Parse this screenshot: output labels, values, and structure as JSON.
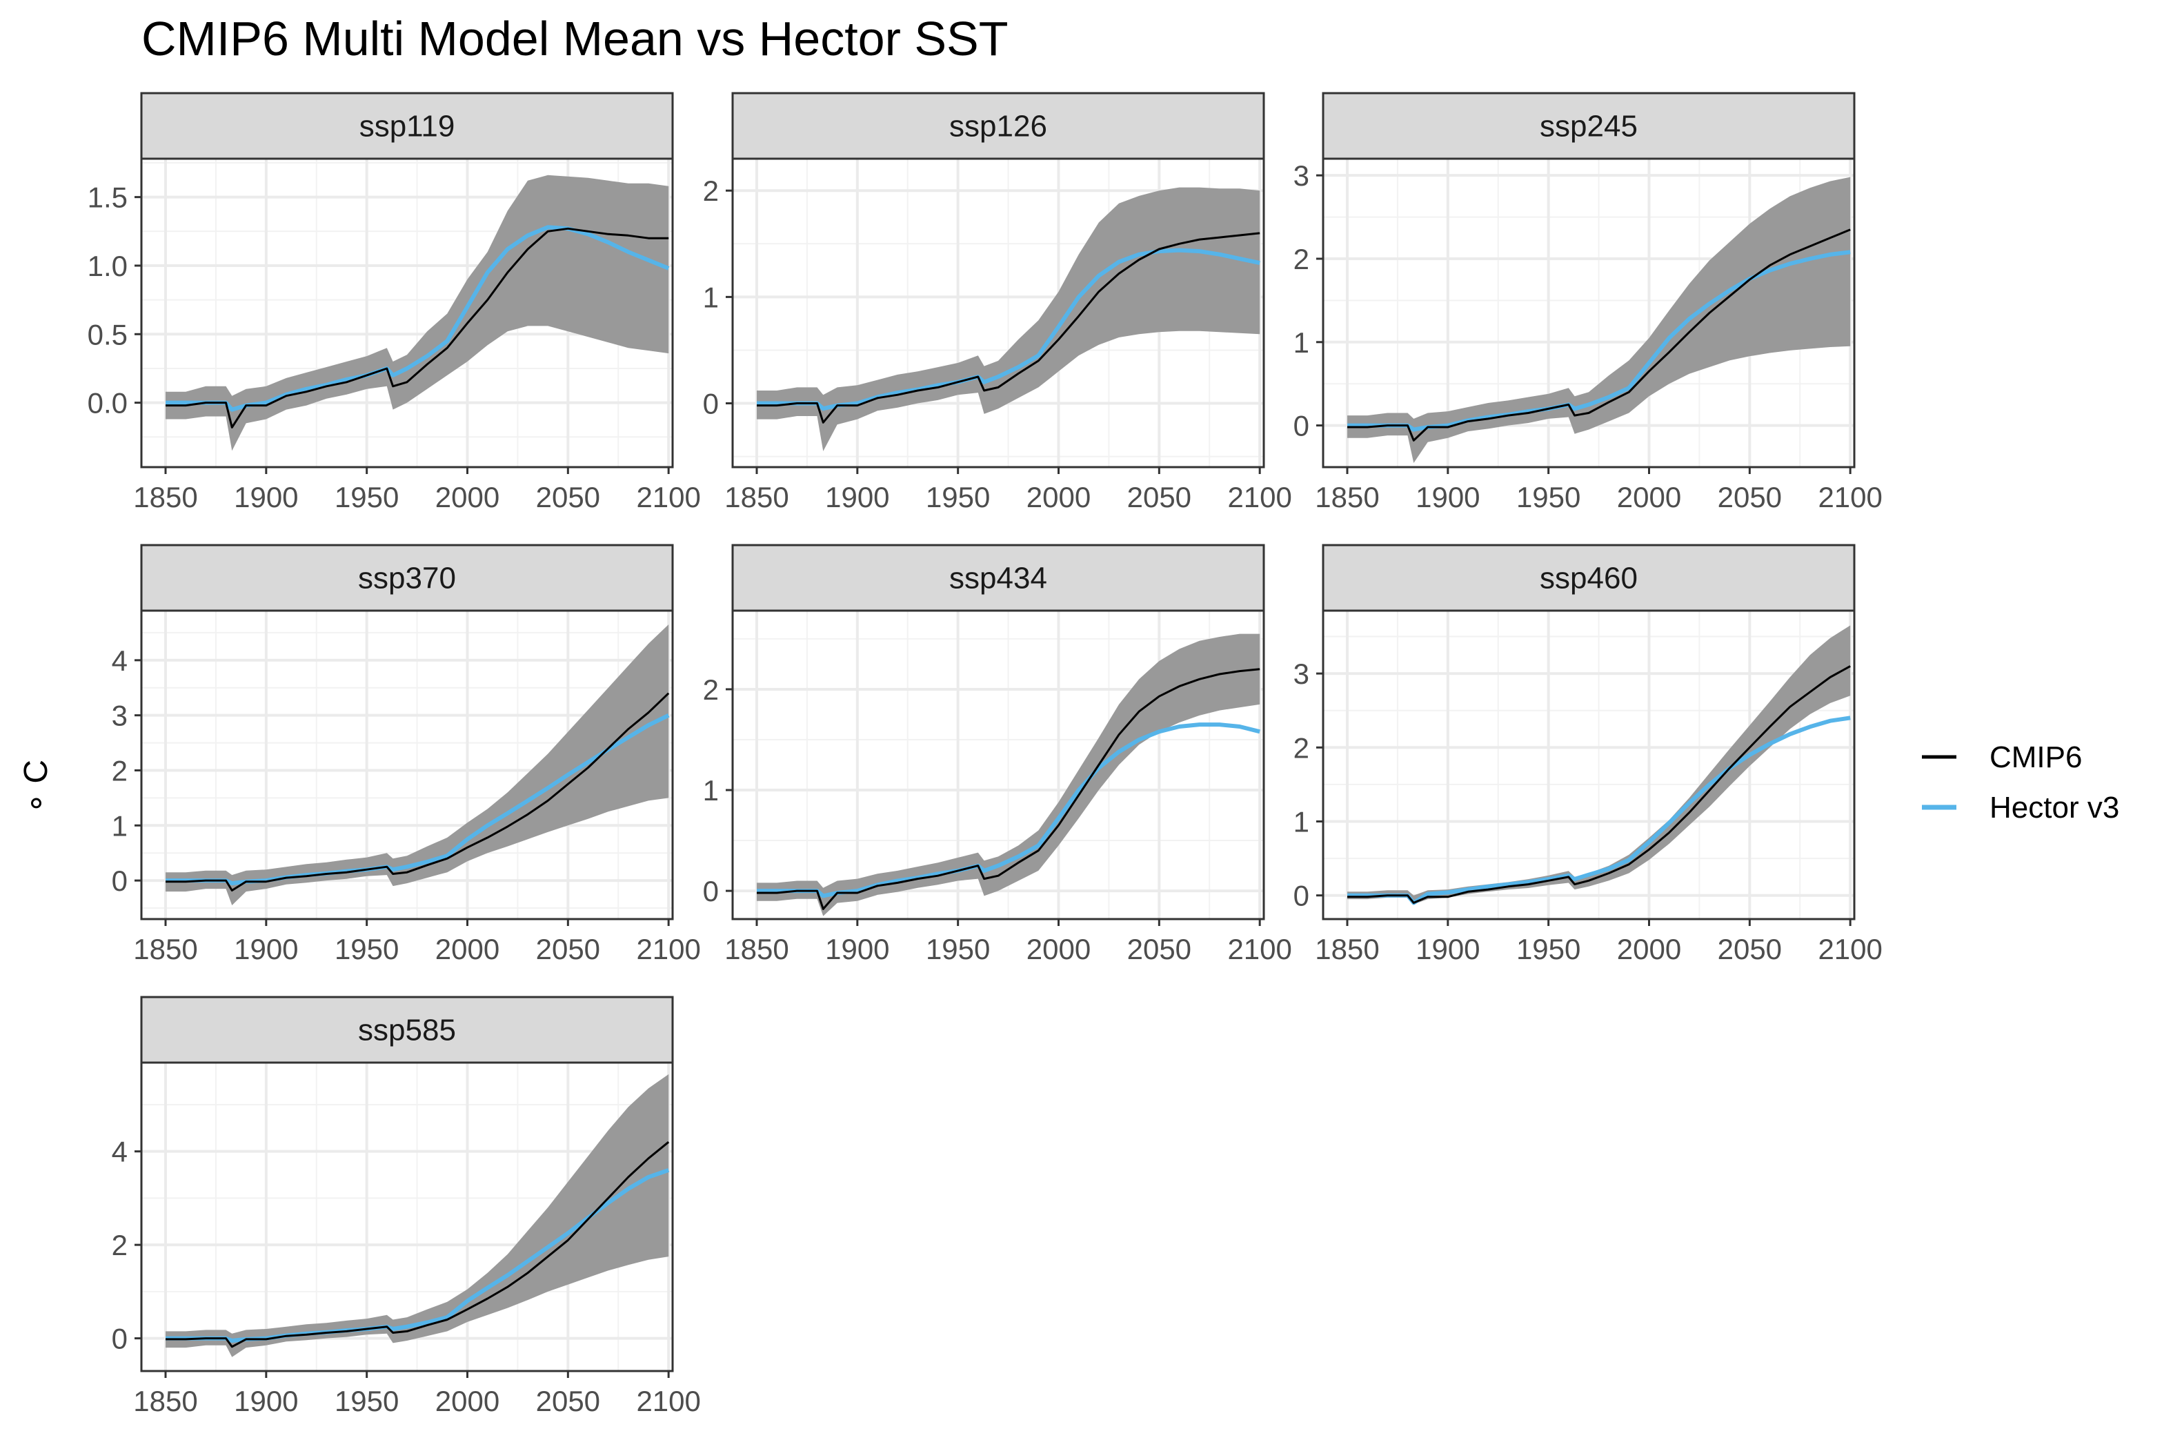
{
  "chart_data": {
    "type": "line",
    "title": "CMIP6 Multi Model Mean vs Hector SST",
    "xlabel": "",
    "ylabel": "∘ C",
    "grid": true,
    "legend_position": "right",
    "legend": [
      {
        "name": "CMIP6",
        "color": "#000000"
      },
      {
        "name": "Hector v3",
        "color": "#56B4E9"
      }
    ],
    "ribbon_color": "#999999",
    "x_ticks": [
      1850,
      1900,
      1950,
      2000,
      2050,
      2100
    ],
    "xlim": [
      1838,
      2102
    ],
    "panels": [
      {
        "name": "ssp119",
        "ylim": [
          -0.47,
          1.78
        ],
        "y_ticks": [
          0,
          0.5,
          1,
          1.5
        ],
        "y_tick_labels": [
          "0.0",
          "0.5",
          "1.0",
          "1.5"
        ],
        "x": [
          1850,
          1860,
          1870,
          1880,
          1883,
          1890,
          1900,
          1910,
          1920,
          1930,
          1940,
          1950,
          1960,
          1963,
          1970,
          1980,
          1990,
          2000,
          2010,
          2020,
          2030,
          2040,
          2050,
          2060,
          2070,
          2080,
          2090,
          2100
        ],
        "cmip6": [
          -0.02,
          -0.02,
          0.0,
          0.0,
          -0.18,
          -0.02,
          -0.02,
          0.05,
          0.08,
          0.12,
          0.15,
          0.2,
          0.25,
          0.12,
          0.15,
          0.28,
          0.4,
          0.58,
          0.75,
          0.95,
          1.12,
          1.25,
          1.27,
          1.25,
          1.23,
          1.22,
          1.2,
          1.2
        ],
        "hector": [
          0.0,
          0.0,
          0.0,
          0.0,
          -0.05,
          -0.02,
          0.0,
          0.06,
          0.1,
          0.13,
          0.17,
          0.2,
          0.25,
          0.2,
          0.25,
          0.34,
          0.45,
          0.7,
          0.95,
          1.12,
          1.22,
          1.28,
          1.27,
          1.23,
          1.17,
          1.1,
          1.04,
          0.98
        ],
        "lower": [
          -0.12,
          -0.12,
          -0.1,
          -0.1,
          -0.35,
          -0.15,
          -0.12,
          -0.05,
          -0.02,
          0.03,
          0.06,
          0.1,
          0.12,
          -0.05,
          0.0,
          0.1,
          0.2,
          0.3,
          0.42,
          0.52,
          0.56,
          0.56,
          0.52,
          0.48,
          0.44,
          0.4,
          0.38,
          0.36
        ],
        "upper": [
          0.08,
          0.08,
          0.12,
          0.12,
          0.05,
          0.1,
          0.12,
          0.18,
          0.22,
          0.26,
          0.3,
          0.34,
          0.4,
          0.3,
          0.35,
          0.52,
          0.65,
          0.9,
          1.1,
          1.4,
          1.62,
          1.66,
          1.65,
          1.64,
          1.62,
          1.6,
          1.6,
          1.58
        ]
      },
      {
        "name": "ssp126",
        "ylim": [
          -0.6,
          2.3
        ],
        "y_ticks": [
          0,
          1,
          2
        ],
        "y_tick_labels": [
          "0",
          "1",
          "2"
        ],
        "x": [
          1850,
          1860,
          1870,
          1880,
          1883,
          1890,
          1900,
          1910,
          1920,
          1930,
          1940,
          1950,
          1960,
          1963,
          1970,
          1980,
          1990,
          2000,
          2010,
          2020,
          2030,
          2040,
          2050,
          2060,
          2070,
          2080,
          2090,
          2100
        ],
        "cmip6": [
          -0.02,
          -0.02,
          0.0,
          0.0,
          -0.18,
          -0.02,
          -0.02,
          0.05,
          0.08,
          0.12,
          0.15,
          0.2,
          0.25,
          0.12,
          0.15,
          0.28,
          0.4,
          0.6,
          0.82,
          1.05,
          1.22,
          1.35,
          1.45,
          1.5,
          1.54,
          1.56,
          1.58,
          1.6
        ],
        "hector": [
          0.0,
          0.0,
          0.0,
          0.0,
          -0.05,
          -0.02,
          0.0,
          0.06,
          0.1,
          0.13,
          0.17,
          0.2,
          0.25,
          0.2,
          0.25,
          0.34,
          0.45,
          0.72,
          1.0,
          1.2,
          1.33,
          1.4,
          1.43,
          1.44,
          1.43,
          1.4,
          1.36,
          1.32
        ],
        "lower": [
          -0.15,
          -0.15,
          -0.12,
          -0.12,
          -0.45,
          -0.2,
          -0.15,
          -0.07,
          -0.04,
          0.0,
          0.03,
          0.08,
          0.1,
          -0.1,
          -0.05,
          0.05,
          0.15,
          0.3,
          0.45,
          0.55,
          0.62,
          0.65,
          0.67,
          0.68,
          0.68,
          0.67,
          0.66,
          0.65
        ],
        "upper": [
          0.12,
          0.12,
          0.15,
          0.15,
          0.08,
          0.15,
          0.17,
          0.22,
          0.27,
          0.3,
          0.34,
          0.38,
          0.45,
          0.35,
          0.4,
          0.6,
          0.78,
          1.05,
          1.4,
          1.7,
          1.88,
          1.95,
          2.0,
          2.03,
          2.03,
          2.02,
          2.02,
          2.0
        ]
      },
      {
        "name": "ssp245",
        "ylim": [
          -0.5,
          3.2
        ],
        "y_ticks": [
          0,
          1,
          2,
          3
        ],
        "y_tick_labels": [
          "0",
          "1",
          "2",
          "3"
        ],
        "x": [
          1850,
          1860,
          1870,
          1880,
          1883,
          1890,
          1900,
          1910,
          1920,
          1930,
          1940,
          1950,
          1960,
          1963,
          1970,
          1980,
          1990,
          2000,
          2010,
          2020,
          2030,
          2040,
          2050,
          2060,
          2070,
          2080,
          2090,
          2100
        ],
        "cmip6": [
          -0.02,
          -0.02,
          0.0,
          0.0,
          -0.18,
          -0.02,
          -0.02,
          0.05,
          0.08,
          0.12,
          0.15,
          0.2,
          0.25,
          0.12,
          0.15,
          0.28,
          0.4,
          0.65,
          0.88,
          1.12,
          1.35,
          1.55,
          1.75,
          1.92,
          2.05,
          2.15,
          2.25,
          2.35
        ],
        "hector": [
          0.0,
          0.0,
          0.0,
          0.0,
          -0.05,
          -0.02,
          0.0,
          0.06,
          0.1,
          0.13,
          0.17,
          0.2,
          0.25,
          0.2,
          0.25,
          0.34,
          0.45,
          0.75,
          1.05,
          1.28,
          1.46,
          1.62,
          1.76,
          1.86,
          1.94,
          2.0,
          2.05,
          2.08
        ],
        "lower": [
          -0.15,
          -0.15,
          -0.12,
          -0.12,
          -0.45,
          -0.2,
          -0.15,
          -0.07,
          -0.04,
          0.0,
          0.03,
          0.08,
          0.1,
          -0.1,
          -0.05,
          0.05,
          0.15,
          0.35,
          0.5,
          0.62,
          0.7,
          0.78,
          0.83,
          0.87,
          0.9,
          0.92,
          0.94,
          0.95
        ],
        "upper": [
          0.12,
          0.12,
          0.15,
          0.15,
          0.08,
          0.15,
          0.17,
          0.22,
          0.27,
          0.3,
          0.34,
          0.38,
          0.45,
          0.35,
          0.4,
          0.6,
          0.78,
          1.05,
          1.38,
          1.7,
          1.98,
          2.2,
          2.42,
          2.6,
          2.75,
          2.85,
          2.93,
          2.98
        ]
      },
      {
        "name": "ssp370",
        "ylim": [
          -0.7,
          4.9
        ],
        "y_ticks": [
          0,
          1,
          2,
          3,
          4
        ],
        "y_tick_labels": [
          "0",
          "1",
          "2",
          "3",
          "4"
        ],
        "x": [
          1850,
          1860,
          1870,
          1880,
          1883,
          1890,
          1900,
          1910,
          1920,
          1930,
          1940,
          1950,
          1960,
          1963,
          1970,
          1980,
          1990,
          2000,
          2010,
          2020,
          2030,
          2040,
          2050,
          2060,
          2070,
          2080,
          2090,
          2100
        ],
        "cmip6": [
          -0.02,
          -0.02,
          0.0,
          0.0,
          -0.18,
          -0.02,
          -0.02,
          0.05,
          0.08,
          0.12,
          0.15,
          0.2,
          0.25,
          0.12,
          0.15,
          0.28,
          0.4,
          0.6,
          0.78,
          0.98,
          1.2,
          1.45,
          1.75,
          2.05,
          2.4,
          2.75,
          3.05,
          3.4
        ],
        "hector": [
          0.0,
          0.0,
          0.0,
          0.0,
          -0.05,
          -0.02,
          0.0,
          0.06,
          0.1,
          0.13,
          0.17,
          0.2,
          0.25,
          0.2,
          0.25,
          0.34,
          0.45,
          0.75,
          1.0,
          1.22,
          1.45,
          1.68,
          1.92,
          2.15,
          2.38,
          2.6,
          2.82,
          3.0
        ],
        "lower": [
          -0.2,
          -0.2,
          -0.15,
          -0.15,
          -0.45,
          -0.2,
          -0.15,
          -0.07,
          -0.04,
          0.0,
          0.03,
          0.08,
          0.1,
          -0.1,
          -0.05,
          0.05,
          0.15,
          0.35,
          0.5,
          0.62,
          0.75,
          0.88,
          1.0,
          1.12,
          1.25,
          1.35,
          1.45,
          1.5
        ],
        "upper": [
          0.15,
          0.15,
          0.18,
          0.18,
          0.1,
          0.18,
          0.2,
          0.25,
          0.3,
          0.33,
          0.38,
          0.42,
          0.5,
          0.4,
          0.45,
          0.62,
          0.78,
          1.05,
          1.3,
          1.6,
          1.95,
          2.3,
          2.7,
          3.1,
          3.5,
          3.9,
          4.3,
          4.65
        ]
      },
      {
        "name": "ssp434",
        "ylim": [
          -0.28,
          2.78
        ],
        "y_ticks": [
          0,
          1,
          2
        ],
        "y_tick_labels": [
          "0",
          "1",
          "2"
        ],
        "x": [
          1850,
          1860,
          1870,
          1880,
          1883,
          1890,
          1900,
          1910,
          1920,
          1930,
          1940,
          1950,
          1960,
          1963,
          1970,
          1980,
          1990,
          2000,
          2010,
          2020,
          2030,
          2040,
          2050,
          2060,
          2070,
          2080,
          2090,
          2100
        ],
        "cmip6": [
          -0.02,
          -0.02,
          0.0,
          0.0,
          -0.18,
          -0.02,
          -0.02,
          0.05,
          0.08,
          0.12,
          0.15,
          0.2,
          0.25,
          0.12,
          0.15,
          0.28,
          0.4,
          0.65,
          0.95,
          1.25,
          1.55,
          1.78,
          1.93,
          2.03,
          2.1,
          2.15,
          2.18,
          2.2
        ],
        "hector": [
          0.0,
          0.0,
          0.0,
          0.0,
          -0.05,
          -0.02,
          0.0,
          0.06,
          0.1,
          0.13,
          0.17,
          0.2,
          0.25,
          0.2,
          0.25,
          0.34,
          0.45,
          0.72,
          1.0,
          1.22,
          1.38,
          1.5,
          1.58,
          1.63,
          1.65,
          1.65,
          1.63,
          1.58
        ],
        "lower": [
          -0.1,
          -0.1,
          -0.08,
          -0.08,
          -0.25,
          -0.12,
          -0.1,
          -0.04,
          -0.01,
          0.03,
          0.06,
          0.1,
          0.12,
          -0.05,
          0.0,
          0.1,
          0.2,
          0.45,
          0.72,
          1.0,
          1.25,
          1.45,
          1.58,
          1.67,
          1.74,
          1.79,
          1.82,
          1.85
        ],
        "upper": [
          0.08,
          0.08,
          0.1,
          0.1,
          0.03,
          0.1,
          0.12,
          0.17,
          0.2,
          0.24,
          0.28,
          0.33,
          0.38,
          0.3,
          0.34,
          0.45,
          0.6,
          0.88,
          1.2,
          1.52,
          1.85,
          2.1,
          2.28,
          2.4,
          2.48,
          2.52,
          2.55,
          2.55
        ]
      },
      {
        "name": "ssp460",
        "ylim": [
          -0.32,
          3.85
        ],
        "y_ticks": [
          0,
          1,
          2,
          3
        ],
        "y_tick_labels": [
          "0",
          "1",
          "2",
          "3"
        ],
        "x": [
          1850,
          1860,
          1870,
          1880,
          1883,
          1890,
          1900,
          1910,
          1920,
          1930,
          1940,
          1950,
          1960,
          1963,
          1970,
          1980,
          1990,
          2000,
          2010,
          2020,
          2030,
          2040,
          2050,
          2060,
          2070,
          2080,
          2090,
          2100
        ],
        "cmip6": [
          -0.02,
          -0.02,
          0.0,
          0.0,
          -0.1,
          -0.02,
          -0.02,
          0.05,
          0.08,
          0.12,
          0.15,
          0.2,
          0.25,
          0.15,
          0.2,
          0.3,
          0.42,
          0.62,
          0.85,
          1.12,
          1.42,
          1.72,
          2.0,
          2.28,
          2.55,
          2.75,
          2.95,
          3.1
        ],
        "hector": [
          0.0,
          0.0,
          0.0,
          0.0,
          -0.1,
          0.02,
          0.04,
          0.08,
          0.12,
          0.15,
          0.18,
          0.22,
          0.27,
          0.22,
          0.28,
          0.36,
          0.48,
          0.72,
          0.98,
          1.25,
          1.5,
          1.72,
          1.9,
          2.05,
          2.18,
          2.28,
          2.36,
          2.4
        ],
        "lower": [
          -0.05,
          -0.05,
          -0.03,
          -0.03,
          -0.12,
          -0.05,
          -0.03,
          0.02,
          0.05,
          0.08,
          0.1,
          0.14,
          0.17,
          0.08,
          0.12,
          0.2,
          0.3,
          0.48,
          0.7,
          0.95,
          1.2,
          1.48,
          1.75,
          2.0,
          2.25,
          2.45,
          2.6,
          2.7
        ],
        "upper": [
          0.05,
          0.05,
          0.07,
          0.07,
          0.0,
          0.07,
          0.08,
          0.12,
          0.15,
          0.18,
          0.22,
          0.27,
          0.33,
          0.25,
          0.3,
          0.4,
          0.55,
          0.78,
          1.02,
          1.32,
          1.65,
          1.98,
          2.3,
          2.62,
          2.95,
          3.25,
          3.48,
          3.65
        ]
      },
      {
        "name": "ssp585",
        "ylim": [
          -0.7,
          5.9
        ],
        "y_ticks": [
          0,
          2,
          4
        ],
        "y_tick_labels": [
          "0",
          "2",
          "4"
        ],
        "x": [
          1850,
          1860,
          1870,
          1880,
          1883,
          1890,
          1900,
          1910,
          1920,
          1930,
          1940,
          1950,
          1960,
          1963,
          1970,
          1980,
          1990,
          2000,
          2010,
          2020,
          2030,
          2040,
          2050,
          2060,
          2070,
          2080,
          2090,
          2100
        ],
        "cmip6": [
          -0.02,
          -0.02,
          0.0,
          0.0,
          -0.18,
          -0.02,
          -0.02,
          0.05,
          0.08,
          0.12,
          0.15,
          0.2,
          0.25,
          0.12,
          0.15,
          0.28,
          0.4,
          0.62,
          0.85,
          1.1,
          1.4,
          1.75,
          2.1,
          2.55,
          3.0,
          3.45,
          3.85,
          4.2
        ],
        "hector": [
          0.0,
          0.0,
          0.0,
          0.0,
          -0.05,
          -0.02,
          0.0,
          0.06,
          0.1,
          0.13,
          0.17,
          0.2,
          0.25,
          0.2,
          0.25,
          0.34,
          0.45,
          0.8,
          1.08,
          1.35,
          1.65,
          1.95,
          2.25,
          2.58,
          2.9,
          3.2,
          3.45,
          3.6
        ],
        "lower": [
          -0.2,
          -0.2,
          -0.15,
          -0.15,
          -0.4,
          -0.2,
          -0.15,
          -0.07,
          -0.04,
          0.0,
          0.03,
          0.08,
          0.1,
          -0.1,
          -0.05,
          0.05,
          0.15,
          0.35,
          0.5,
          0.65,
          0.82,
          1.0,
          1.15,
          1.3,
          1.45,
          1.57,
          1.68,
          1.75
        ],
        "upper": [
          0.15,
          0.15,
          0.18,
          0.18,
          0.1,
          0.18,
          0.2,
          0.25,
          0.3,
          0.33,
          0.38,
          0.42,
          0.5,
          0.4,
          0.45,
          0.62,
          0.78,
          1.05,
          1.4,
          1.8,
          2.3,
          2.8,
          3.35,
          3.9,
          4.45,
          4.95,
          5.35,
          5.65
        ]
      }
    ]
  }
}
